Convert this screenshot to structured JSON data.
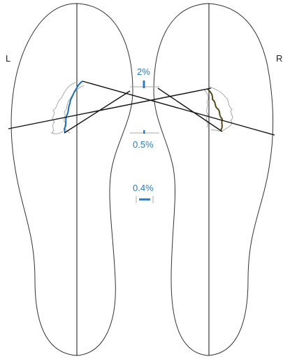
{
  "sides": {
    "left": "L",
    "right": "R"
  },
  "metrics": {
    "top": "2%",
    "middle": "0.5%",
    "bottom": "0.4%"
  },
  "colors": {
    "outline": "#333333",
    "left_trace": "#1f6fb5",
    "right_trace": "#5a4a1a",
    "ghost_trace": "#a8a8a8",
    "indicator": "#2b7bbf",
    "axis_line": "#111111"
  }
}
